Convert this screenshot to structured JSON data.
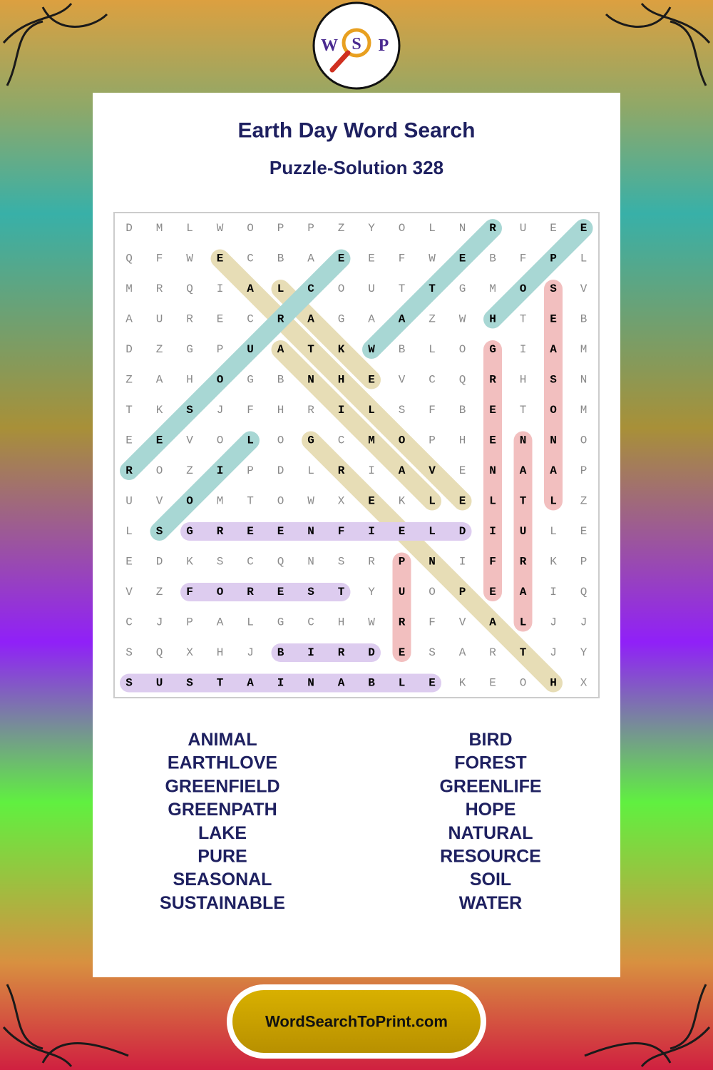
{
  "header": {
    "logo": [
      "W",
      "S",
      "P"
    ],
    "title": "Earth Day Word Search",
    "subtitle": "Puzzle-Solution 328"
  },
  "grid": {
    "rows": [
      [
        "D",
        "M",
        "L",
        "W",
        "O",
        "P",
        "P",
        "Z",
        "Y",
        "O",
        "L",
        "N",
        "R",
        "U",
        "E",
        "E"
      ],
      [
        "Q",
        "F",
        "W",
        "E",
        "C",
        "B",
        "A",
        "E",
        "E",
        "F",
        "W",
        "E",
        "B",
        "F",
        "P",
        "L"
      ],
      [
        "M",
        "R",
        "Q",
        "I",
        "A",
        "L",
        "C",
        "O",
        "U",
        "T",
        "T",
        "G",
        "M",
        "O",
        "S",
        "V"
      ],
      [
        "A",
        "U",
        "R",
        "E",
        "C",
        "R",
        "A",
        "G",
        "A",
        "A",
        "Z",
        "W",
        "H",
        "T",
        "E",
        "B"
      ],
      [
        "D",
        "Z",
        "G",
        "P",
        "U",
        "A",
        "T",
        "K",
        "W",
        "B",
        "L",
        "O",
        "G",
        "I",
        "A",
        "M"
      ],
      [
        "Z",
        "A",
        "H",
        "O",
        "G",
        "B",
        "N",
        "H",
        "E",
        "V",
        "C",
        "Q",
        "R",
        "H",
        "S",
        "N"
      ],
      [
        "T",
        "K",
        "S",
        "J",
        "F",
        "H",
        "R",
        "I",
        "L",
        "S",
        "F",
        "B",
        "E",
        "T",
        "O",
        "M"
      ],
      [
        "E",
        "E",
        "V",
        "O",
        "L",
        "O",
        "G",
        "C",
        "M",
        "O",
        "P",
        "H",
        "E",
        "N",
        "N",
        "O"
      ],
      [
        "R",
        "O",
        "Z",
        "I",
        "P",
        "D",
        "L",
        "R",
        "I",
        "A",
        "V",
        "E",
        "N",
        "A",
        "A",
        "P"
      ],
      [
        "U",
        "V",
        "O",
        "M",
        "T",
        "O",
        "W",
        "X",
        "E",
        "K",
        "L",
        "E",
        "L",
        "T",
        "L",
        "Z"
      ],
      [
        "L",
        "S",
        "G",
        "R",
        "E",
        "E",
        "N",
        "F",
        "I",
        "E",
        "L",
        "D",
        "I",
        "U",
        "L",
        "E"
      ],
      [
        "E",
        "D",
        "K",
        "S",
        "C",
        "Q",
        "N",
        "S",
        "R",
        "P",
        "N",
        "I",
        "F",
        "R",
        "K",
        "P"
      ],
      [
        "V",
        "Z",
        "F",
        "O",
        "R",
        "E",
        "S",
        "T",
        "Y",
        "U",
        "O",
        "P",
        "E",
        "A",
        "I",
        "Q"
      ],
      [
        "C",
        "J",
        "P",
        "A",
        "L",
        "G",
        "C",
        "H",
        "W",
        "R",
        "F",
        "V",
        "A",
        "L",
        "J",
        "J"
      ],
      [
        "S",
        "Q",
        "X",
        "H",
        "J",
        "B",
        "I",
        "R",
        "D",
        "E",
        "S",
        "A",
        "R",
        "T",
        "J",
        "Y"
      ],
      [
        "S",
        "U",
        "S",
        "T",
        "A",
        "I",
        "N",
        "A",
        "B",
        "L",
        "E",
        "K",
        "E",
        "O",
        "H",
        "X"
      ]
    ]
  },
  "words": {
    "columns": [
      [
        "ANIMAL",
        "EARTHLOVE",
        "GREENFIELD",
        "GREENPATH",
        "LAKE",
        "PURE",
        "SEASONAL",
        "SUSTAINABLE"
      ],
      [
        "BIRD",
        "FOREST",
        "GREENLIFE",
        "HOPE",
        "NATURAL",
        "RESOURCE",
        "SOIL",
        "WATER"
      ]
    ]
  },
  "footer": {
    "site": "WordSearchToPrint.com"
  }
}
